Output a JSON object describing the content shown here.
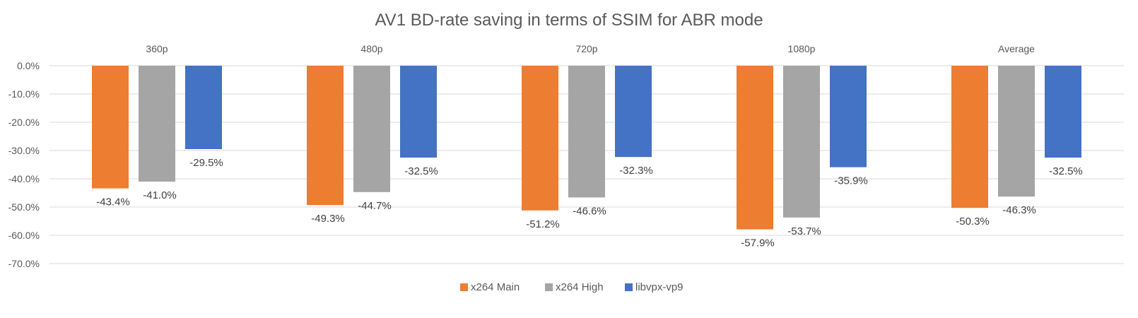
{
  "chart_data": {
    "type": "bar",
    "title": "AV1 BD-rate saving in terms of SSIM for ABR mode",
    "categories": [
      "360p",
      "480p",
      "720p",
      "1080p",
      "Average"
    ],
    "series": [
      {
        "name": "x264 Main",
        "color": "#ed7d31",
        "values": [
          -43.4,
          -49.3,
          -51.2,
          -57.9,
          -50.3
        ]
      },
      {
        "name": "x264 High",
        "color": "#a5a5a5",
        "values": [
          -41.0,
          -44.7,
          -46.6,
          -53.7,
          -46.3
        ]
      },
      {
        "name": "libvpx-vp9",
        "color": "#4472c4",
        "values": [
          -29.5,
          -32.5,
          -32.3,
          -35.9,
          -32.5
        ]
      }
    ],
    "data_labels": [
      [
        "-43.4%",
        "-49.3%",
        "-51.2%",
        "-57.9%",
        "-50.3%"
      ],
      [
        "-41.0%",
        "-44.7%",
        "-46.6%",
        "-53.7%",
        "-46.3%"
      ],
      [
        "-29.5%",
        "-32.5%",
        "-32.3%",
        "-35.9%",
        "-32.5%"
      ]
    ],
    "y_ticks": [
      0,
      -10,
      -20,
      -30,
      -40,
      -50,
      -60,
      -70
    ],
    "y_tick_labels": [
      "0.0%",
      "-10.0%",
      "-20.0%",
      "-30.0%",
      "-40.0%",
      "-50.0%",
      "-60.0%",
      "-70.0%"
    ],
    "ylim": [
      -70,
      0
    ],
    "xlabel": "",
    "ylabel": "",
    "grid": true,
    "legend_position": "bottom",
    "category_label_position": "top"
  }
}
